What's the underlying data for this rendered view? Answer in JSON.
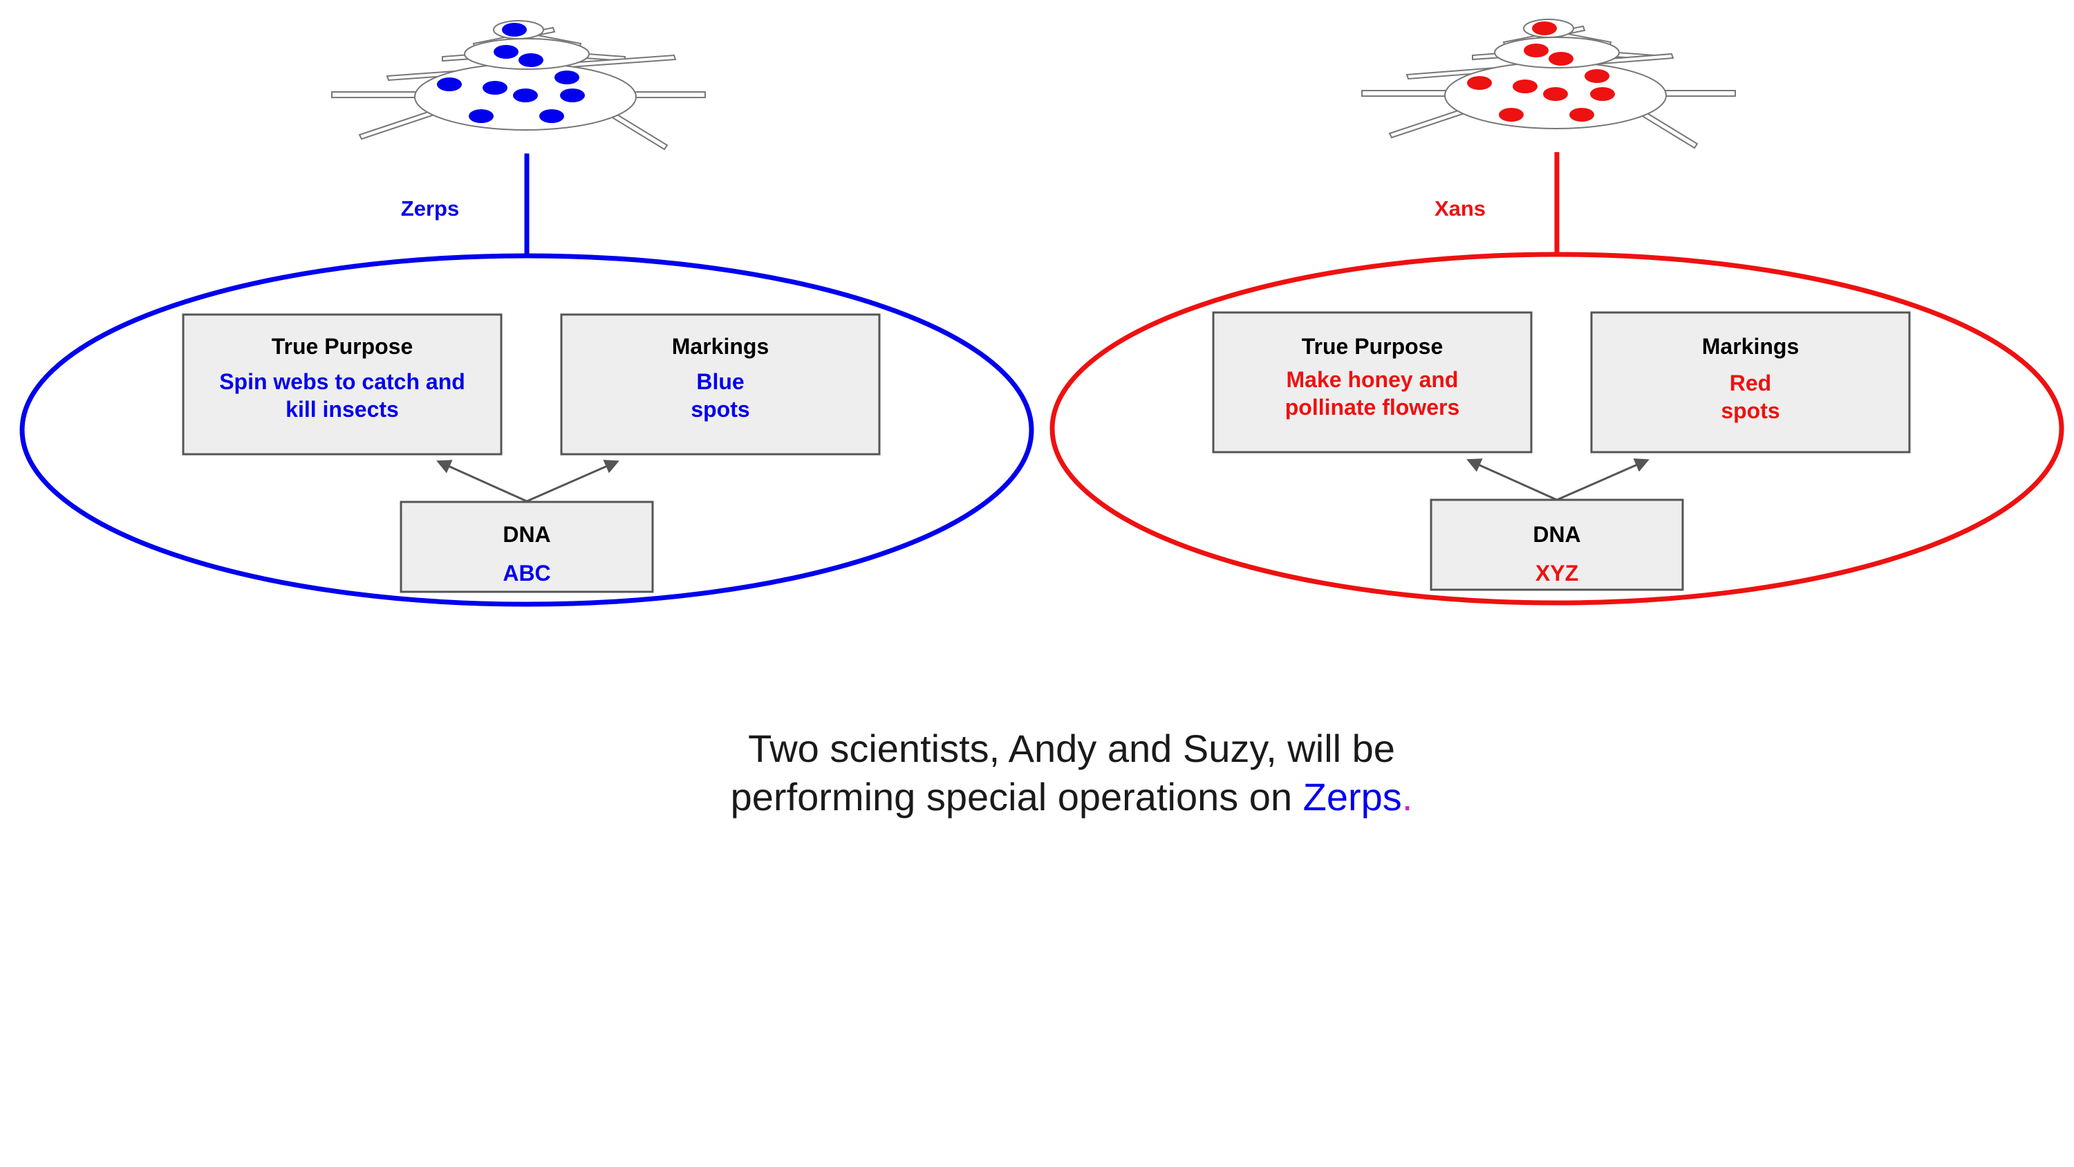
{
  "colors": {
    "zerps": "#0000ee",
    "xans": "#ee1111",
    "period": "#cc22cc"
  },
  "groups": {
    "zerps": {
      "name": "Zerps",
      "true_purpose": {
        "title": "True Purpose",
        "line1": "Spin webs to catch and",
        "line2": "kill insects"
      },
      "markings": {
        "title": "Markings",
        "line1": "Blue",
        "line2": "spots"
      },
      "dna": {
        "title": "DNA",
        "value": "ABC"
      }
    },
    "xans": {
      "name": "Xans",
      "true_purpose": {
        "title": "True Purpose",
        "line1": "Make honey and",
        "line2": "pollinate flowers"
      },
      "markings": {
        "title": "Markings",
        "line1": "Red",
        "line2": "spots"
      },
      "dna": {
        "title": "DNA",
        "value": "XYZ"
      }
    }
  },
  "caption": {
    "line1": "Two scientists, Andy and Suzy, will be",
    "line2_prefix": "performing special operations on ",
    "line2_highlight": "Zerps",
    "line2_end": "."
  }
}
